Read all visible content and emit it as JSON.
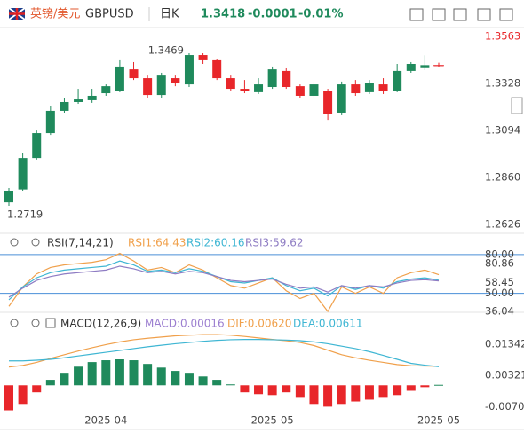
{
  "header": {
    "symbol_name": "英镑/美元",
    "code": "GBPUSD",
    "period": "日K",
    "price": "1.3418",
    "change": "-0.0001",
    "change_pct": "-0.01%"
  },
  "chart_data": [
    {
      "type": "candlestick",
      "categories": [
        null,
        null,
        null,
        null,
        null,
        null,
        null,
        "2025-04",
        null,
        null,
        null,
        null,
        null,
        null,
        null,
        null,
        null,
        null,
        null,
        "2025-05",
        null,
        null,
        null,
        null,
        null,
        null,
        null,
        null,
        null,
        null,
        null,
        "2025-05"
      ],
      "open": [
        1.2736,
        1.28,
        1.2957,
        1.3081,
        1.3192,
        1.3236,
        1.3245,
        1.328,
        1.3293,
        1.3399,
        1.3355,
        1.3271,
        1.3355,
        1.3324,
        1.347,
        1.3444,
        1.3355,
        1.3302,
        1.3285,
        1.3311,
        1.3391,
        1.3315,
        1.3267,
        1.3289,
        1.3183,
        1.3324,
        1.3285,
        1.3324,
        1.3293,
        1.3391,
        1.3405,
        1.342
      ],
      "high": [
        1.2807,
        1.2984,
        1.3094,
        1.3214,
        1.3258,
        1.3302,
        1.3302,
        1.3324,
        1.3444,
        1.3435,
        1.3368,
        1.3382,
        1.3368,
        1.3479,
        1.3479,
        1.3452,
        1.3368,
        1.3346,
        1.3355,
        1.3413,
        1.3404,
        1.3324,
        1.3338,
        1.3302,
        1.3338,
        1.3346,
        1.3346,
        1.3355,
        1.3426,
        1.3435,
        1.3469,
        1.3432
      ],
      "low": [
        1.2719,
        1.2794,
        1.2949,
        1.3072,
        1.3183,
        1.3227,
        1.3232,
        1.3267,
        1.3285,
        1.3346,
        1.3258,
        1.3258,
        1.3315,
        1.3311,
        1.3426,
        1.3346,
        1.3289,
        1.328,
        1.3276,
        1.3302,
        1.3302,
        1.3258,
        1.3258,
        1.3147,
        1.317,
        1.3267,
        1.3276,
        1.3276,
        1.3285,
        1.3382,
        1.3395,
        1.341
      ],
      "close": [
        1.2794,
        1.2957,
        1.3081,
        1.3192,
        1.3236,
        1.3249,
        1.3267,
        1.3315,
        1.3413,
        1.3355,
        1.3271,
        1.3368,
        1.3333,
        1.347,
        1.3444,
        1.3355,
        1.3302,
        1.3293,
        1.3324,
        1.3399,
        1.3311,
        1.3267,
        1.3324,
        1.3178,
        1.3324,
        1.328,
        1.3329,
        1.3293,
        1.3391,
        1.3426,
        1.342,
        1.3418
      ],
      "up_color": "#1f8a5c",
      "down_color": "#e8262a",
      "ylim": [
        1.2626,
        1.3563
      ],
      "yticks": [
        1.3563,
        1.3328,
        1.3094,
        {
          "value": 1.286,
          "label": "1.2860"
        },
        1.2626
      ],
      "low_label": "1.2719",
      "high_label": "1.3469",
      "grid": false
    },
    {
      "type": "line",
      "title": "RSI(7,14,21)",
      "series": [
        {
          "name": "RSI1:64.43",
          "color": "#f0a04b",
          "values": [
            40,
            55,
            65,
            70,
            72,
            73,
            74,
            76,
            80.86,
            75,
            68,
            70,
            66,
            72,
            68,
            62,
            56,
            54,
            58,
            62,
            52,
            46,
            50,
            36.04,
            55,
            50,
            55,
            50,
            62,
            66,
            68,
            64.43
          ]
        },
        {
          "name": "RSI2:60.16",
          "color": "#3fb6d3",
          "values": [
            45,
            55,
            62,
            66,
            68,
            69,
            70,
            71,
            75,
            72,
            67,
            68,
            66,
            69,
            67,
            63,
            59,
            58,
            60,
            62,
            56,
            52,
            54,
            48,
            56,
            53,
            56,
            54,
            59,
            61,
            62,
            60.16
          ]
        },
        {
          "name": "RSI3:59.62",
          "color": "#8e7cc3",
          "values": [
            47,
            54,
            60,
            63,
            65,
            66,
            67,
            68,
            71,
            69,
            66,
            67,
            65,
            67,
            66,
            63,
            60,
            59,
            60,
            61,
            57,
            54,
            55,
            51,
            56,
            54,
            56,
            55,
            58,
            60,
            60.5,
            59.62
          ]
        }
      ],
      "ylim": [
        34,
        84
      ],
      "yticks": [
        {
          "value": 80,
          "label": "80.00"
        },
        80.86,
        58.45,
        {
          "value": 50,
          "label": "50.00"
        },
        36.04
      ],
      "ref_lines": [
        80,
        50
      ],
      "ref_color": "#4a8fd8"
    },
    {
      "type": "macd",
      "title": "MACD(12,26,9)",
      "series": [
        {
          "name": "MACD:0.00016",
          "color": "#9c7fd0",
          "kind": "bar",
          "up_color": "#1f8a5c",
          "down_color": "#e8262a",
          "values": [
            -0.0082,
            -0.0061,
            -0.0023,
            0.0018,
            0.0041,
            0.0061,
            0.0076,
            0.0082,
            0.0085,
            0.0082,
            0.007,
            0.0058,
            0.0047,
            0.0041,
            0.0029,
            0.0018,
            0.0003,
            -0.0023,
            -0.0029,
            -0.0032,
            -0.0023,
            -0.0038,
            -0.0061,
            -0.007,
            -0.0061,
            -0.0053,
            -0.0047,
            -0.0038,
            -0.0032,
            -0.0018,
            -0.0006,
            0.00016
          ]
        },
        {
          "name": "DIF:0.00620",
          "color": "#f0a04b",
          "kind": "line",
          "values": [
            0.006,
            0.0065,
            0.0075,
            0.0088,
            0.01,
            0.0112,
            0.0123,
            0.0133,
            0.0142,
            0.0149,
            0.0154,
            0.0158,
            0.0162,
            0.0164,
            0.0166,
            0.0166,
            0.0164,
            0.016,
            0.0155,
            0.015,
            0.0146,
            0.014,
            0.013,
            0.0115,
            0.01,
            0.009,
            0.0082,
            0.0075,
            0.0068,
            0.0064,
            0.0063,
            0.0062
          ]
        },
        {
          "name": "DEA:0.00611",
          "color": "#3fb6d3",
          "kind": "line",
          "values": [
            0.008,
            0.008,
            0.0082,
            0.0085,
            0.009,
            0.0096,
            0.0102,
            0.0108,
            0.0114,
            0.012,
            0.0126,
            0.0131,
            0.0136,
            0.014,
            0.0144,
            0.0147,
            0.0149,
            0.015,
            0.015,
            0.0149,
            0.0148,
            0.0146,
            0.0142,
            0.0136,
            0.0128,
            0.012,
            0.011,
            0.0098,
            0.0085,
            0.0072,
            0.0066,
            0.00611
          ]
        }
      ],
      "ylim": [
        -0.0095,
        0.0175
      ],
      "yticks": [
        0.01342,
        0.00321,
        -0.00701
      ]
    }
  ]
}
